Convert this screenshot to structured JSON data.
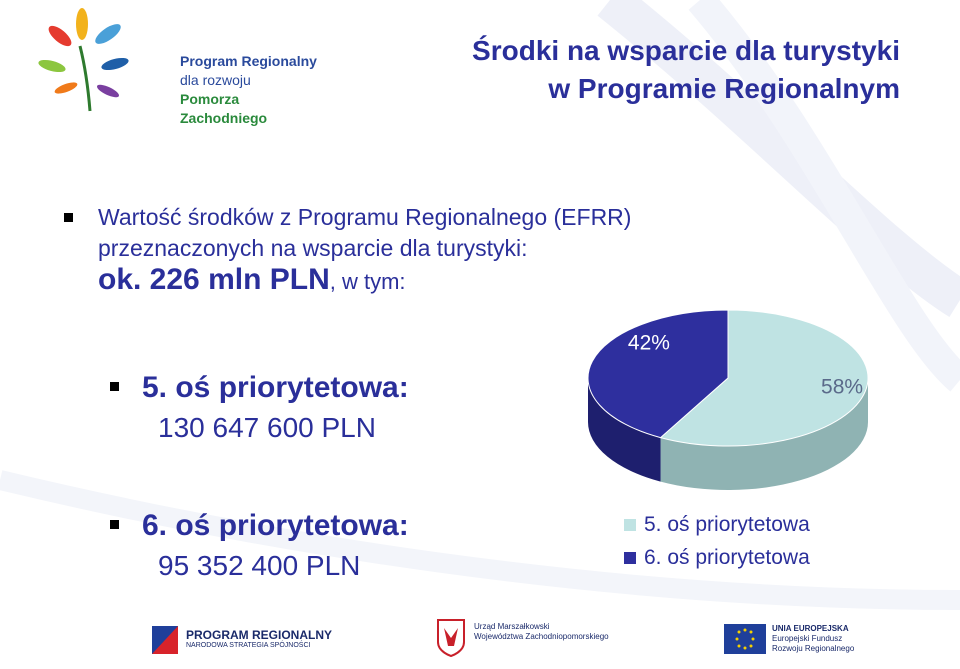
{
  "logo": {
    "line1": "Program Regionalny",
    "line2": "dla rozwoju",
    "line3": "Pomorza Zachodniego"
  },
  "title": {
    "line1": "Środki na wsparcie dla turystyki",
    "line2": "w Programie Regionalnym"
  },
  "intro": {
    "line1": "Wartość środków z Programu Regionalnego (EFRR)",
    "line2": "przeznaczonych na wsparcie dla turystyki:",
    "amount": "ok. 226 mln PLN",
    "suffix": ", w tym:"
  },
  "axes": [
    {
      "name": "5. oś priorytetowa:",
      "amount": "130 647 600 PLN"
    },
    {
      "name": "6. oś priorytetowa:",
      "amount": "95 352 400 PLN"
    }
  ],
  "chart_data": {
    "type": "pie",
    "categories": [
      "5. oś priorytetowa",
      "6. oś priorytetowa"
    ],
    "values": [
      58,
      42
    ],
    "labels": [
      "58%",
      "42%"
    ],
    "colors": [
      "#bfe3e3",
      "#2e2f9e"
    ],
    "legend_position": "bottom"
  },
  "footer": {
    "left_line1": "PROGRAM REGIONALNY",
    "left_line2": "NARODOWA STRATEGIA SPÓJNOŚCI",
    "center_line1": "Urząd Marszałkowski",
    "center_line2": "Województwa Zachodniopomorskiego",
    "right_line1": "UNIA EUROPEJSKA",
    "right_line2": "Europejski Fundusz",
    "right_line3": "Rozwoju Regionalnego"
  },
  "colors": {
    "title": "#2a2f9a",
    "text": "#2a2f9a",
    "pie_light": "#bfe3e3",
    "pie_dark": "#2e2f9e"
  }
}
